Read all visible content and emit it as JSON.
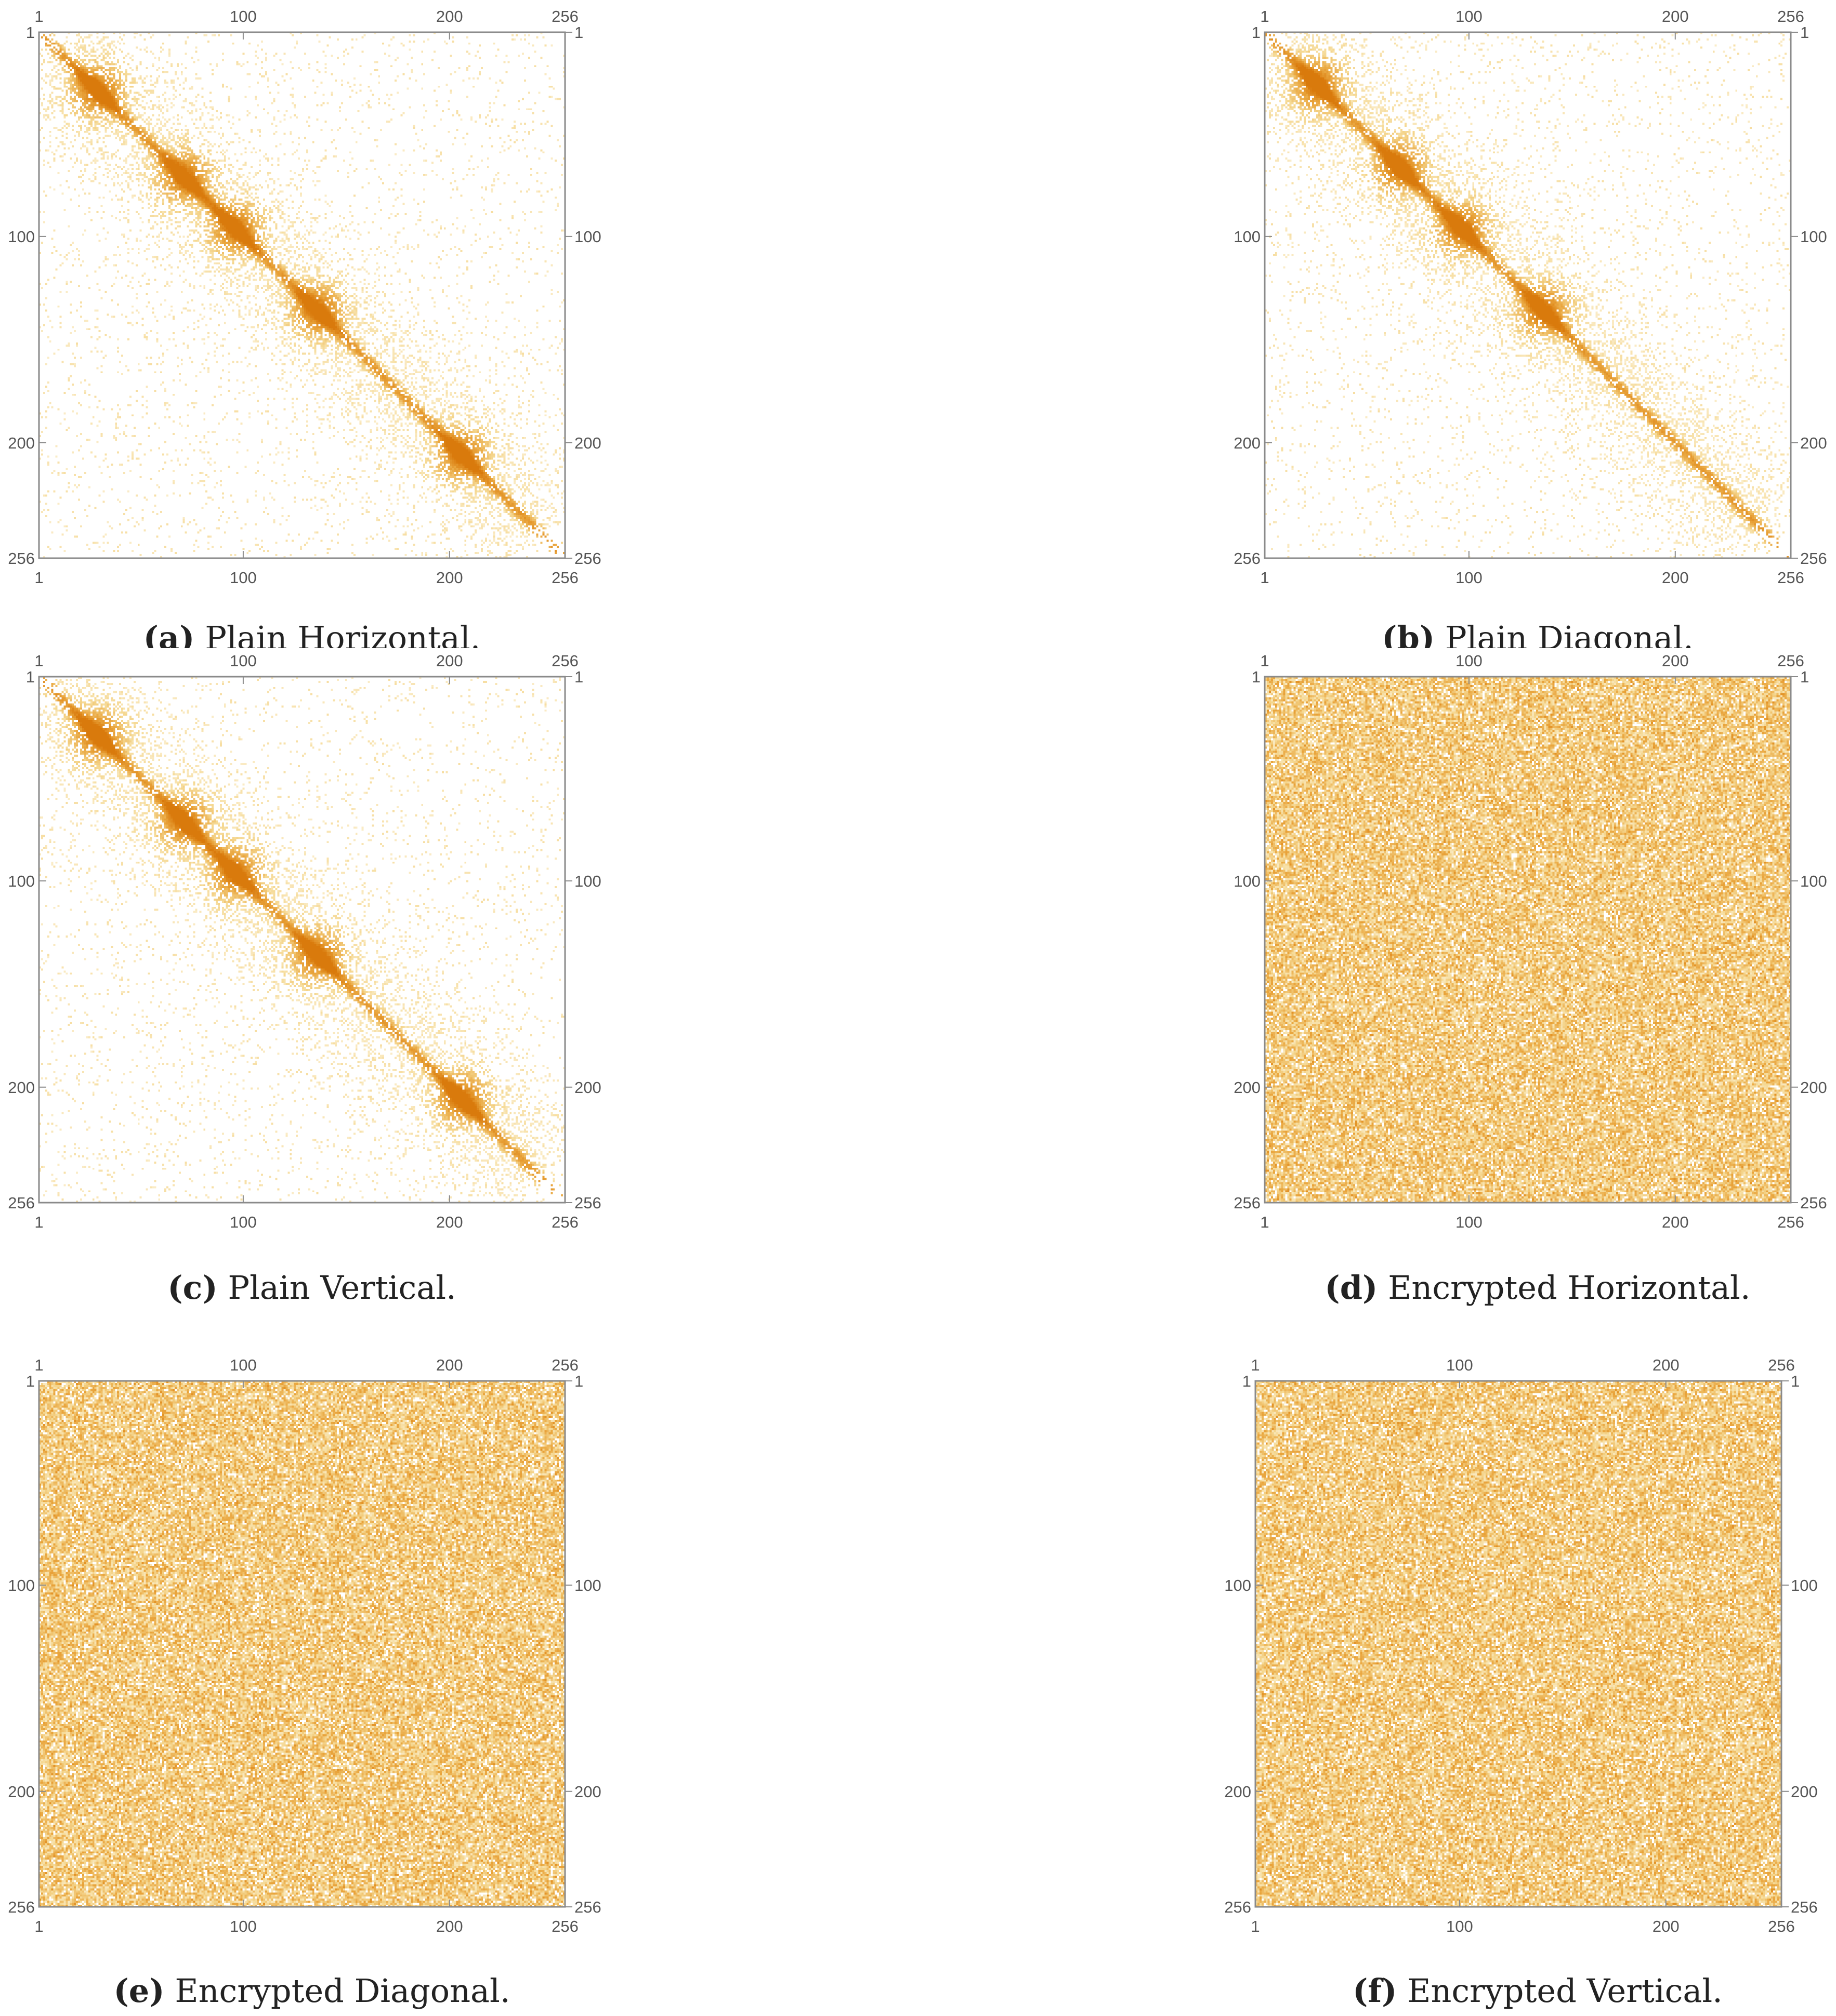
{
  "chart_data": [
    {
      "id": "a",
      "type": "heatmap",
      "pattern": "diagonal",
      "seed": 11,
      "caption_letter": "(a)",
      "caption_text": "Plain Horizontal.",
      "xlim": [
        1,
        256
      ],
      "ylim": [
        1,
        256
      ],
      "y_inverted": true,
      "x_ticks": [
        "1",
        "100",
        "200",
        "256"
      ],
      "y_ticks": [
        "1",
        "100",
        "200",
        "256"
      ],
      "hotspots": [
        [
          28,
          28
        ],
        [
          70,
          70
        ],
        [
          95,
          95
        ],
        [
          135,
          135
        ],
        [
          205,
          205
        ]
      ],
      "colormap": [
        "#fdf7e6",
        "#f5d892",
        "#e9a53d",
        "#d97a0c"
      ],
      "axes_frame": true,
      "frame_ticks_mirrored": true
    },
    {
      "id": "b",
      "type": "heatmap",
      "pattern": "diagonal",
      "seed": 23,
      "caption_letter": "(b)",
      "caption_text": "Plain Diagonal.",
      "xlim": [
        1,
        256
      ],
      "ylim": [
        1,
        256
      ],
      "y_inverted": true,
      "x_ticks": [
        "1",
        "100",
        "200",
        "256"
      ],
      "y_ticks": [
        "1",
        "100",
        "200",
        "256"
      ],
      "hotspots": [
        [
          25,
          25
        ],
        [
          65,
          65
        ],
        [
          95,
          95
        ],
        [
          135,
          135
        ]
      ],
      "colormap": [
        "#fdf7e6",
        "#f5d892",
        "#e9a53d",
        "#d97a0c"
      ],
      "axes_frame": true,
      "frame_ticks_mirrored": true
    },
    {
      "id": "c",
      "type": "heatmap",
      "pattern": "diagonal",
      "seed": 37,
      "caption_letter": "(c)",
      "caption_text": "Plain Vertical.",
      "xlim": [
        1,
        256
      ],
      "ylim": [
        1,
        256
      ],
      "y_inverted": true,
      "x_ticks": [
        "1",
        "100",
        "200",
        "256"
      ],
      "y_ticks": [
        "1",
        "100",
        "200",
        "256"
      ],
      "hotspots": [
        [
          28,
          28
        ],
        [
          70,
          70
        ],
        [
          95,
          95
        ],
        [
          135,
          135
        ],
        [
          205,
          205
        ]
      ],
      "colormap": [
        "#fdf7e6",
        "#f5d892",
        "#e9a53d",
        "#d97a0c"
      ],
      "axes_frame": true,
      "frame_ticks_mirrored": true
    },
    {
      "id": "d",
      "type": "heatmap",
      "pattern": "uniform",
      "seed": 41,
      "caption_letter": "(d)",
      "caption_text": "Encrypted Horizontal.",
      "xlim": [
        1,
        256
      ],
      "ylim": [
        1,
        256
      ],
      "y_inverted": true,
      "x_ticks": [
        "1",
        "100",
        "200",
        "256"
      ],
      "y_ticks": [
        "1",
        "100",
        "200",
        "256"
      ],
      "colormap": [
        "#fdf7e6",
        "#f5d892",
        "#e9a53d",
        "#d97a0c"
      ],
      "axes_frame": true,
      "frame_ticks_mirrored": true
    },
    {
      "id": "e",
      "type": "heatmap",
      "pattern": "uniform",
      "seed": 53,
      "caption_letter": "(e)",
      "caption_text": "Encrypted Diagonal.",
      "xlim": [
        1,
        256
      ],
      "ylim": [
        1,
        256
      ],
      "y_inverted": true,
      "x_ticks": [
        "1",
        "100",
        "200",
        "256"
      ],
      "y_ticks": [
        "1",
        "100",
        "200",
        "256"
      ],
      "colormap": [
        "#fdf7e6",
        "#f5d892",
        "#e9a53d",
        "#d97a0c"
      ],
      "axes_frame": true,
      "frame_ticks_mirrored": true
    },
    {
      "id": "f",
      "type": "heatmap",
      "pattern": "uniform",
      "seed": 67,
      "caption_letter": "(f)",
      "caption_text": "Encrypted Vertical.",
      "xlim": [
        1,
        256
      ],
      "ylim": [
        1,
        256
      ],
      "y_inverted": true,
      "x_ticks": [
        "1",
        "100",
        "200",
        "256"
      ],
      "y_ticks": [
        "1",
        "100",
        "200",
        "256"
      ],
      "colormap": [
        "#fdf7e6",
        "#f5d892",
        "#e9a53d",
        "#d97a0c"
      ],
      "axes_frame": true,
      "frame_ticks_mirrored": true
    }
  ]
}
